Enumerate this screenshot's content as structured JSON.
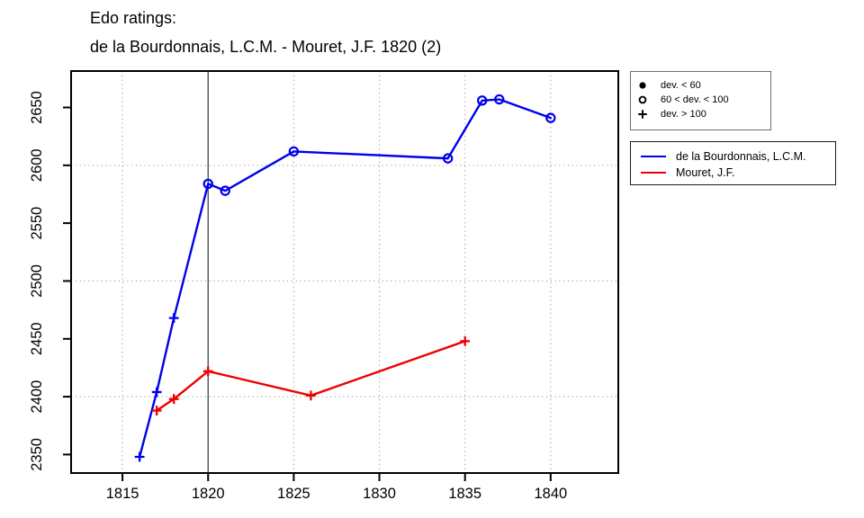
{
  "title": {
    "line1": "Edo ratings:",
    "line2": "de la Bourdonnais, L.C.M. - Mouret, J.F. 1820 (2)"
  },
  "colors": {
    "series1": "#0000EE",
    "series2": "#EE0000",
    "grid_dotted": "#A8A8A8",
    "event_line": "#454545",
    "axis": "#000000",
    "legend_dev_border": "#6E6E6E",
    "legend_series_border": "#1A1A1A",
    "background": "#FFFFFF"
  },
  "chart_data": {
    "type": "line",
    "title": "Edo ratings: de la Bourdonnais, L.C.M. - Mouret, J.F. 1820 (2)",
    "xlabel": "",
    "ylabel": "",
    "xlim": [
      1812.0,
      1843.95
    ],
    "ylim": [
      2334,
      2681.5
    ],
    "x_ticks": [
      1815,
      1820,
      1825,
      1830,
      1835,
      1840
    ],
    "y_ticks": [
      2350,
      2400,
      2450,
      2500,
      2550,
      2600,
      2650
    ],
    "grid": {
      "vertical_dotted_x": [
        1815,
        1825,
        1830,
        1835,
        1840
      ],
      "horizontal_dotted_y": [
        2400,
        2500,
        2600
      ],
      "event_line_x": 1820
    },
    "legend_markers": {
      "items": [
        {
          "symbol": "filled-circle",
          "label": "dev. < 60"
        },
        {
          "symbol": "open-circle",
          "label": "60 < dev. < 100"
        },
        {
          "symbol": "plus",
          "label": "dev. > 100"
        }
      ]
    },
    "legend_position": "right",
    "series": [
      {
        "name": "de la Bourdonnais, L.C.M.",
        "color": "#0000EE",
        "points": [
          {
            "year": 1816,
            "rating": 2348,
            "marker": "plus"
          },
          {
            "year": 1817,
            "rating": 2404,
            "marker": "plus"
          },
          {
            "year": 1818,
            "rating": 2468,
            "marker": "plus"
          },
          {
            "year": 1820,
            "rating": 2584,
            "marker": "open-circle"
          },
          {
            "year": 1821,
            "rating": 2578,
            "marker": "open-circle"
          },
          {
            "year": 1825,
            "rating": 2612,
            "marker": "open-circle"
          },
          {
            "year": 1834,
            "rating": 2606,
            "marker": "open-circle"
          },
          {
            "year": 1836,
            "rating": 2656,
            "marker": "open-circle"
          },
          {
            "year": 1837,
            "rating": 2657,
            "marker": "open-circle"
          },
          {
            "year": 1840,
            "rating": 2641,
            "marker": "open-circle"
          }
        ]
      },
      {
        "name": "Mouret, J.F.",
        "color": "#EE0000",
        "points": [
          {
            "year": 1817,
            "rating": 2388,
            "marker": "plus"
          },
          {
            "year": 1818,
            "rating": 2398,
            "marker": "plus"
          },
          {
            "year": 1820,
            "rating": 2422,
            "marker": "plus"
          },
          {
            "year": 1826,
            "rating": 2401,
            "marker": "plus"
          },
          {
            "year": 1835,
            "rating": 2448,
            "marker": "plus"
          }
        ]
      }
    ]
  }
}
